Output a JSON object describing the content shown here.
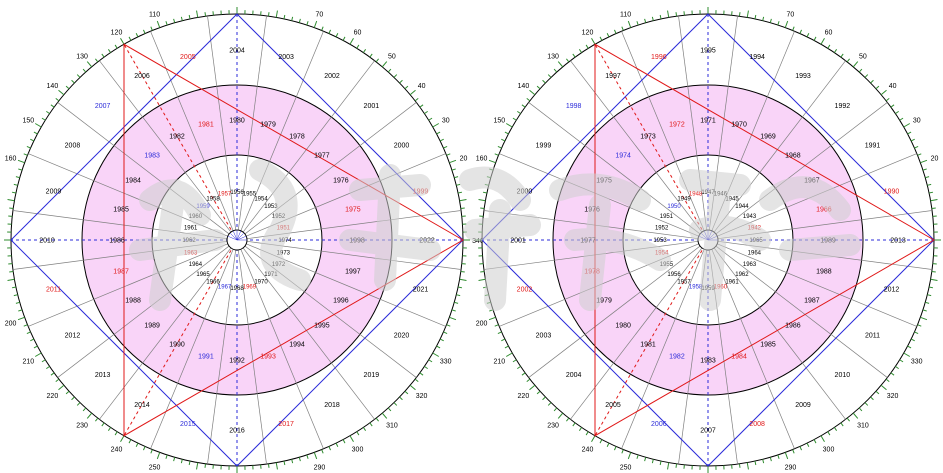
{
  "colors": {
    "pink": "#f9d4f8",
    "ring_line": "#000000",
    "spoke": "#808080",
    "blue": "#2b2bd9",
    "red": "#e01818",
    "tick": "#2e8b2e",
    "black_text": "#000000",
    "watermark": "#d4d4d4"
  },
  "wheels": [
    {
      "name": "left-wheel",
      "degree_labels": [
        {
          "deg": 0,
          "text": "340"
        },
        {
          "deg": 20,
          "text": "20"
        },
        {
          "deg": 30,
          "text": "30"
        },
        {
          "deg": 40,
          "text": "40"
        },
        {
          "deg": 50,
          "text": "50"
        },
        {
          "deg": 60,
          "text": "60"
        },
        {
          "deg": 70,
          "text": "70"
        },
        {
          "deg": 110,
          "text": "110"
        },
        {
          "deg": 120,
          "text": "120"
        },
        {
          "deg": 130,
          "text": "130"
        },
        {
          "deg": 140,
          "text": "140"
        },
        {
          "deg": 150,
          "text": "150"
        },
        {
          "deg": 160,
          "text": "160"
        },
        {
          "deg": 200,
          "text": "200"
        },
        {
          "deg": 210,
          "text": "210"
        },
        {
          "deg": 220,
          "text": "220"
        },
        {
          "deg": 230,
          "text": "230"
        },
        {
          "deg": 240,
          "text": "240"
        },
        {
          "deg": 250,
          "text": "250"
        },
        {
          "deg": 290,
          "text": "290"
        },
        {
          "deg": 300,
          "text": "300"
        },
        {
          "deg": 310,
          "text": "310"
        },
        {
          "deg": 320,
          "text": "320"
        },
        {
          "deg": 330,
          "text": "330"
        }
      ],
      "outer_years": [
        {
          "text": "2022",
          "color": "black"
        },
        {
          "text": "2021",
          "color": "black"
        },
        {
          "text": "2020",
          "color": "black"
        },
        {
          "text": "2019",
          "color": "black"
        },
        {
          "text": "2018",
          "color": "black"
        },
        {
          "text": "2017",
          "color": "red"
        },
        {
          "text": "2016",
          "color": "black"
        },
        {
          "text": "2015",
          "color": "blue"
        },
        {
          "text": "2014",
          "color": "black"
        },
        {
          "text": "2013",
          "color": "black"
        },
        {
          "text": "2012",
          "color": "black"
        },
        {
          "text": "2011",
          "color": "red"
        },
        {
          "text": "2010",
          "color": "black"
        },
        {
          "text": "2009",
          "color": "black"
        },
        {
          "text": "2008",
          "color": "black"
        },
        {
          "text": "2007",
          "color": "blue"
        },
        {
          "text": "2006",
          "color": "black"
        },
        {
          "text": "2005",
          "color": "red"
        },
        {
          "text": "2004",
          "color": "black"
        },
        {
          "text": "2003",
          "color": "black"
        },
        {
          "text": "2002",
          "color": "black"
        },
        {
          "text": "2001",
          "color": "black"
        },
        {
          "text": "2000",
          "color": "black"
        },
        {
          "text": "1999",
          "color": "red"
        }
      ],
      "middle_years": [
        {
          "text": "1998",
          "color": "black"
        },
        {
          "text": "1997",
          "color": "black"
        },
        {
          "text": "1996",
          "color": "black"
        },
        {
          "text": "1995",
          "color": "black"
        },
        {
          "text": "1994",
          "color": "black"
        },
        {
          "text": "1993",
          "color": "red"
        },
        {
          "text": "1992",
          "color": "black"
        },
        {
          "text": "1991",
          "color": "blue"
        },
        {
          "text": "1990",
          "color": "black"
        },
        {
          "text": "1989",
          "color": "black"
        },
        {
          "text": "1988",
          "color": "black"
        },
        {
          "text": "1987",
          "color": "red"
        },
        {
          "text": "1986",
          "color": "black"
        },
        {
          "text": "1985",
          "color": "black"
        },
        {
          "text": "1984",
          "color": "black"
        },
        {
          "text": "1983",
          "color": "blue"
        },
        {
          "text": "1982",
          "color": "black"
        },
        {
          "text": "1981",
          "color": "red"
        },
        {
          "text": "1980",
          "color": "black"
        },
        {
          "text": "1979",
          "color": "black"
        },
        {
          "text": "1978",
          "color": "black"
        },
        {
          "text": "1977",
          "color": "black"
        },
        {
          "text": "1976",
          "color": "black"
        },
        {
          "text": "1975",
          "color": "red"
        }
      ],
      "inner_years": [
        {
          "text": "1974",
          "color": "black"
        },
        {
          "text": "1973",
          "color": "black"
        },
        {
          "text": "1972",
          "color": "black"
        },
        {
          "text": "1971",
          "color": "black"
        },
        {
          "text": "1970",
          "color": "black"
        },
        {
          "text": "1969",
          "color": "red"
        },
        {
          "text": "1968",
          "color": "black"
        },
        {
          "text": "1967",
          "color": "blue"
        },
        {
          "text": "1966",
          "color": "black"
        },
        {
          "text": "1965",
          "color": "black"
        },
        {
          "text": "1964",
          "color": "black"
        },
        {
          "text": "1963",
          "color": "red"
        },
        {
          "text": "1962",
          "color": "black"
        },
        {
          "text": "1961",
          "color": "black"
        },
        {
          "text": "1960",
          "color": "black"
        },
        {
          "text": "1959",
          "color": "blue"
        },
        {
          "text": "1958",
          "color": "black"
        },
        {
          "text": "1957",
          "color": "red"
        },
        {
          "text": "1956",
          "color": "black"
        },
        {
          "text": "1955",
          "color": "black"
        },
        {
          "text": "1954",
          "color": "black"
        },
        {
          "text": "1953",
          "color": "black"
        },
        {
          "text": "1952",
          "color": "black"
        },
        {
          "text": "1951",
          "color": "red"
        }
      ]
    },
    {
      "name": "right-wheel",
      "degree_labels": [
        {
          "deg": 0,
          "text": "340"
        },
        {
          "deg": 20,
          "text": "20"
        },
        {
          "deg": 30,
          "text": "30"
        },
        {
          "deg": 40,
          "text": "40"
        },
        {
          "deg": 50,
          "text": "50"
        },
        {
          "deg": 60,
          "text": "60"
        },
        {
          "deg": 70,
          "text": "70"
        },
        {
          "deg": 110,
          "text": "110"
        },
        {
          "deg": 120,
          "text": "120"
        },
        {
          "deg": 130,
          "text": "130"
        },
        {
          "deg": 140,
          "text": "140"
        },
        {
          "deg": 150,
          "text": "150"
        },
        {
          "deg": 160,
          "text": "160"
        },
        {
          "deg": 200,
          "text": "200"
        },
        {
          "deg": 210,
          "text": "210"
        },
        {
          "deg": 220,
          "text": "220"
        },
        {
          "deg": 230,
          "text": "230"
        },
        {
          "deg": 240,
          "text": "240"
        },
        {
          "deg": 250,
          "text": "250"
        },
        {
          "deg": 290,
          "text": "290"
        },
        {
          "deg": 300,
          "text": "300"
        },
        {
          "deg": 310,
          "text": "310"
        },
        {
          "deg": 320,
          "text": "320"
        },
        {
          "deg": 330,
          "text": "330"
        }
      ],
      "outer_years": [
        {
          "text": "2013",
          "color": "black"
        },
        {
          "text": "2012",
          "color": "black"
        },
        {
          "text": "2011",
          "color": "black"
        },
        {
          "text": "2010",
          "color": "black"
        },
        {
          "text": "2009",
          "color": "black"
        },
        {
          "text": "2008",
          "color": "red"
        },
        {
          "text": "2007",
          "color": "black"
        },
        {
          "text": "2006",
          "color": "blue"
        },
        {
          "text": "2005",
          "color": "black"
        },
        {
          "text": "2004",
          "color": "black"
        },
        {
          "text": "2003",
          "color": "black"
        },
        {
          "text": "2002",
          "color": "red"
        },
        {
          "text": "2001",
          "color": "black"
        },
        {
          "text": "2000",
          "color": "black"
        },
        {
          "text": "1999",
          "color": "black"
        },
        {
          "text": "1998",
          "color": "blue"
        },
        {
          "text": "1997",
          "color": "black"
        },
        {
          "text": "1996",
          "color": "red"
        },
        {
          "text": "1995",
          "color": "black"
        },
        {
          "text": "1994",
          "color": "black"
        },
        {
          "text": "1993",
          "color": "black"
        },
        {
          "text": "1992",
          "color": "black"
        },
        {
          "text": "1991",
          "color": "black"
        },
        {
          "text": "1990",
          "color": "red"
        }
      ],
      "middle_years": [
        {
          "text": "1989",
          "color": "black"
        },
        {
          "text": "1988",
          "color": "black"
        },
        {
          "text": "1987",
          "color": "black"
        },
        {
          "text": "1986",
          "color": "black"
        },
        {
          "text": "1985",
          "color": "black"
        },
        {
          "text": "1984",
          "color": "red"
        },
        {
          "text": "1983",
          "color": "black"
        },
        {
          "text": "1982",
          "color": "blue"
        },
        {
          "text": "1981",
          "color": "black"
        },
        {
          "text": "1980",
          "color": "black"
        },
        {
          "text": "1979",
          "color": "black"
        },
        {
          "text": "1978",
          "color": "red"
        },
        {
          "text": "1977",
          "color": "black"
        },
        {
          "text": "1976",
          "color": "black"
        },
        {
          "text": "1975",
          "color": "black"
        },
        {
          "text": "1974",
          "color": "blue"
        },
        {
          "text": "1973",
          "color": "black"
        },
        {
          "text": "1972",
          "color": "red"
        },
        {
          "text": "1971",
          "color": "black"
        },
        {
          "text": "1970",
          "color": "black"
        },
        {
          "text": "1969",
          "color": "black"
        },
        {
          "text": "1968",
          "color": "black"
        },
        {
          "text": "1967",
          "color": "black"
        },
        {
          "text": "1966",
          "color": "red"
        }
      ],
      "inner_years": [
        {
          "text": "1965",
          "color": "black"
        },
        {
          "text": "1964",
          "color": "black"
        },
        {
          "text": "1963",
          "color": "black"
        },
        {
          "text": "1962",
          "color": "black"
        },
        {
          "text": "1961",
          "color": "black"
        },
        {
          "text": "1960",
          "color": "red"
        },
        {
          "text": "1959",
          "color": "black"
        },
        {
          "text": "1958",
          "color": "blue"
        },
        {
          "text": "1957",
          "color": "black"
        },
        {
          "text": "1956",
          "color": "black"
        },
        {
          "text": "1955",
          "color": "black"
        },
        {
          "text": "1954",
          "color": "red"
        },
        {
          "text": "1953",
          "color": "black"
        },
        {
          "text": "1952",
          "color": "black"
        },
        {
          "text": "1951",
          "color": "black"
        },
        {
          "text": "1950",
          "color": "blue"
        },
        {
          "text": "1949",
          "color": "black"
        },
        {
          "text": "1948",
          "color": "red"
        },
        {
          "text": "1947",
          "color": "black"
        },
        {
          "text": "1946",
          "color": "black"
        },
        {
          "text": "1945",
          "color": "black"
        },
        {
          "text": "1944",
          "color": "black"
        },
        {
          "text": "1943",
          "color": "black"
        },
        {
          "text": "1942",
          "color": "red"
        }
      ]
    }
  ]
}
